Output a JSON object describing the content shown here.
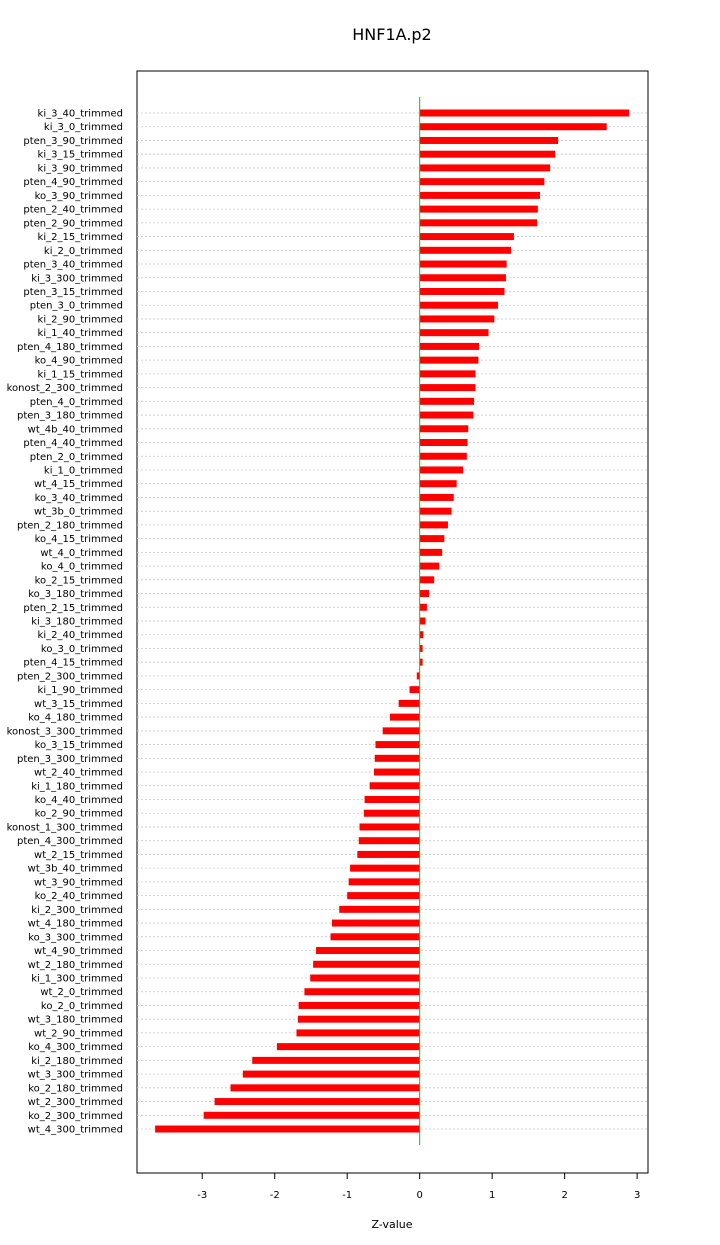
{
  "chart_data": {
    "type": "bar",
    "orientation": "horizontal",
    "title": "HNF1A.p2",
    "xlabel": "Z-value",
    "ylabel": "",
    "xlim": [
      -3.9,
      3.15
    ],
    "xticks": [
      -3,
      -2,
      -1,
      0,
      1,
      2,
      3
    ],
    "grid": true,
    "bar_color": "#ff0000",
    "zero_line_color": "#00cc00",
    "categories": [
      "ki_3_40_trimmed",
      "ki_3_0_trimmed",
      "pten_3_90_trimmed",
      "ki_3_15_trimmed",
      "ki_3_90_trimmed",
      "pten_4_90_trimmed",
      "ko_3_90_trimmed",
      "pten_2_40_trimmed",
      "pten_2_90_trimmed",
      "ki_2_15_trimmed",
      "ki_2_0_trimmed",
      "pten_3_40_trimmed",
      "ki_3_300_trimmed",
      "pten_3_15_trimmed",
      "pten_3_0_trimmed",
      "ki_2_90_trimmed",
      "ki_1_40_trimmed",
      "pten_4_180_trimmed",
      "ko_4_90_trimmed",
      "ki_1_15_trimmed",
      "konost_2_300_trimmed",
      "pten_4_0_trimmed",
      "pten_3_180_trimmed",
      "wt_4b_40_trimmed",
      "pten_4_40_trimmed",
      "pten_2_0_trimmed",
      "ki_1_0_trimmed",
      "wt_4_15_trimmed",
      "ko_3_40_trimmed",
      "wt_3b_0_trimmed",
      "pten_2_180_trimmed",
      "ko_4_15_trimmed",
      "wt_4_0_trimmed",
      "ko_4_0_trimmed",
      "ko_2_15_trimmed",
      "ko_3_180_trimmed",
      "pten_2_15_trimmed",
      "ki_3_180_trimmed",
      "ki_2_40_trimmed",
      "ko_3_0_trimmed",
      "pten_4_15_trimmed",
      "pten_2_300_trimmed",
      "ki_1_90_trimmed",
      "wt_3_15_trimmed",
      "ko_4_180_trimmed",
      "konost_3_300_trimmed",
      "ko_3_15_trimmed",
      "pten_3_300_trimmed",
      "wt_2_40_trimmed",
      "ki_1_180_trimmed",
      "ko_4_40_trimmed",
      "ko_2_90_trimmed",
      "konost_1_300_trimmed",
      "pten_4_300_trimmed",
      "wt_2_15_trimmed",
      "wt_3b_40_trimmed",
      "wt_3_90_trimmed",
      "ko_2_40_trimmed",
      "ki_2_300_trimmed",
      "wt_4_180_trimmed",
      "ko_3_300_trimmed",
      "wt_4_90_trimmed",
      "wt_2_180_trimmed",
      "ki_1_300_trimmed",
      "wt_2_0_trimmed",
      "ko_2_0_trimmed",
      "wt_3_180_trimmed",
      "wt_2_90_trimmed",
      "ko_4_300_trimmed",
      "ki_2_180_trimmed",
      "wt_3_300_trimmed",
      "ko_2_180_trimmed",
      "wt_2_300_trimmed",
      "ko_2_300_trimmed",
      "wt_4_300_trimmed"
    ],
    "values": [
      2.89,
      2.58,
      1.91,
      1.87,
      1.8,
      1.72,
      1.66,
      1.63,
      1.62,
      1.3,
      1.26,
      1.2,
      1.19,
      1.17,
      1.08,
      1.03,
      0.95,
      0.82,
      0.81,
      0.77,
      0.77,
      0.75,
      0.74,
      0.67,
      0.66,
      0.65,
      0.6,
      0.51,
      0.47,
      0.44,
      0.39,
      0.34,
      0.31,
      0.27,
      0.2,
      0.13,
      0.1,
      0.08,
      0.05,
      0.04,
      0.04,
      -0.04,
      -0.14,
      -0.29,
      -0.41,
      -0.51,
      -0.61,
      -0.62,
      -0.63,
      -0.69,
      -0.76,
      -0.77,
      -0.83,
      -0.84,
      -0.86,
      -0.96,
      -0.98,
      -1.0,
      -1.11,
      -1.21,
      -1.23,
      -1.43,
      -1.47,
      -1.51,
      -1.59,
      -1.67,
      -1.68,
      -1.7,
      -1.97,
      -2.31,
      -2.44,
      -2.61,
      -2.83,
      -2.98,
      -3.65
    ]
  }
}
